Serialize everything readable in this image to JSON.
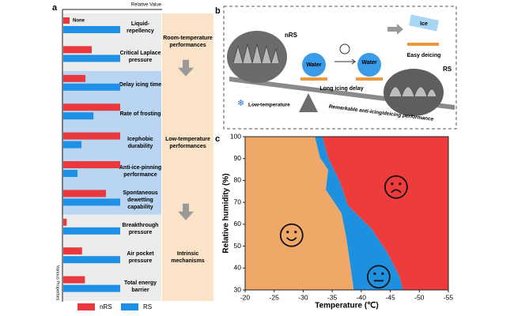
{
  "panel_labels": [
    "a",
    "b",
    "c"
  ],
  "chart_data": [
    {
      "type": "hbar",
      "x_label": "Relative Value",
      "y_label": "Various Properties",
      "xlim": [
        0,
        1
      ],
      "categories": [
        "Liquid-repellency",
        "Critical Laplace pressure",
        "Delay icing time",
        "Rate of frosting",
        "Icephobic durability",
        "Anti-ice-pinning performance",
        "Spontaneous dewetting capability",
        "Breakthrough pressure",
        "Air pocket pressure",
        "Total energy barrier"
      ],
      "series": [
        {
          "name": "nRS",
          "color": "#e8393f",
          "values": [
            0,
            0.5,
            0.39,
            1,
            1,
            1,
            0.75,
            0.06,
            0.33,
            0.38
          ],
          "value_labels": [
            "None",
            null,
            null,
            null,
            null,
            null,
            null,
            null,
            null,
            null
          ]
        },
        {
          "name": "RS",
          "color": "#1e90e6",
          "values": [
            1,
            1,
            1,
            0.53,
            0.32,
            0.25,
            1,
            1,
            1,
            1
          ]
        }
      ],
      "groups": [
        {
          "label": "Room-temperature performances",
          "first": 0,
          "last": 1,
          "color": "#ececec"
        },
        {
          "label": "Low-temperature performances",
          "first": 2,
          "last": 6,
          "color": "#b9d5f2"
        },
        {
          "label": "Intrinsic mechanisms",
          "first": 7,
          "last": 9,
          "color": "#ececec"
        }
      ]
    },
    {
      "type": "regions",
      "x_label": "Temperature (℃)",
      "y_label": "Relative humidity (%)",
      "xlim": [
        -20,
        -55
      ],
      "ylim": [
        30,
        100
      ],
      "xticks": [
        -20,
        -25,
        -30,
        -35,
        -40,
        -45,
        -50,
        -55
      ],
      "yticks": [
        30,
        40,
        50,
        60,
        70,
        80,
        90,
        100
      ],
      "colors": [
        "#f0a868",
        "#1e90e0",
        "#ee3b3b"
      ],
      "boundary_1": {
        "x": [
          -32,
          -32.9,
          -34.3,
          -33.9,
          -36.6,
          -37.4,
          -38,
          -38.7
        ],
        "y": [
          100,
          90.3,
          84.9,
          75.8,
          65,
          54.2,
          43.4,
          30
        ]
      },
      "boundary_2": {
        "x": [
          -33.3,
          -34.3,
          -36.3,
          -37.7,
          -41.8,
          -44.5,
          -46.6,
          -47.2
        ],
        "y": [
          100,
          90.3,
          79.5,
          68.6,
          57.8,
          47,
          36.1,
          30
        ]
      },
      "markers": [
        {
          "x": -28,
          "y": 55,
          "mood": "happy"
        },
        {
          "x": -43,
          "y": 36,
          "mood": "neutral"
        },
        {
          "x": -46,
          "y": 77,
          "mood": "sad"
        }
      ]
    }
  ],
  "diagram": {
    "nrs": "nRS",
    "rs": "RS",
    "water_1": "Water",
    "water_2": "Water",
    "delay": "Long icing delay",
    "ice": "Ice",
    "deicing": "Easy deicing",
    "low_temp": "Low-temperature",
    "performance": "Remarkable anti-icing/deicing performance"
  }
}
